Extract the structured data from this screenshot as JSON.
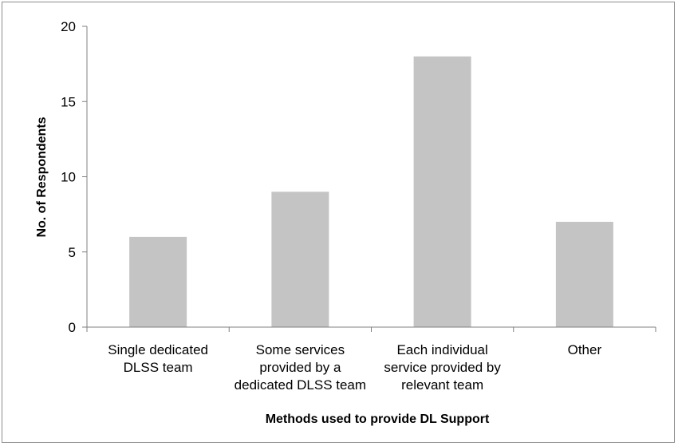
{
  "chart_data": {
    "type": "bar",
    "categories": [
      [
        "Single dedicated",
        "DLSS team"
      ],
      [
        "Some services",
        "provided by a",
        "dedicated DLSS team"
      ],
      [
        "Each individual",
        "service provided by",
        "relevant team"
      ],
      [
        "Other"
      ]
    ],
    "values": [
      6,
      9,
      18,
      7
    ],
    "xlabel": "Methods used to provide DL Support",
    "ylabel": "No. of Respondents",
    "ylim": [
      0,
      20
    ],
    "yticks": [
      0,
      5,
      10,
      15,
      20
    ],
    "ytick_labels": [
      "0",
      "5",
      "10",
      "15",
      "20"
    ],
    "grid": false,
    "legend": "none",
    "colors": {
      "bar": "#c4c4c4",
      "axis": "#808080",
      "frame": "#8c8c8c"
    }
  }
}
